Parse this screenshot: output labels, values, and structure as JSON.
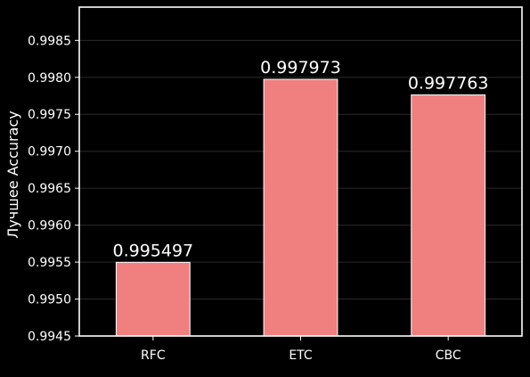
{
  "colors": {
    "background": "#000000",
    "bar_fill": "#f08080",
    "bar_edge": "#ffffff",
    "text": "#ffffff",
    "grid": "#2a2a2a",
    "frame": "#ffffff"
  },
  "chart_data": {
    "type": "bar",
    "categories": [
      "RFC",
      "ETC",
      "CBC"
    ],
    "values": [
      0.995497,
      0.997973,
      0.997763
    ],
    "value_labels": [
      "0.995497",
      "0.997973",
      "0.997763"
    ],
    "title": "",
    "xlabel": "",
    "ylabel": "Лучшее Accuracy",
    "ylim": [
      0.9945,
      0.99895
    ],
    "yticks": [
      0.9945,
      0.995,
      0.9955,
      0.996,
      0.9965,
      0.997,
      0.9975,
      0.998,
      0.9985
    ],
    "ytick_labels": [
      "0.9945",
      "0.9950",
      "0.9955",
      "0.9960",
      "0.9965",
      "0.9970",
      "0.9975",
      "0.9980",
      "0.9985"
    ],
    "grid": "horizontal",
    "legend": "none"
  }
}
